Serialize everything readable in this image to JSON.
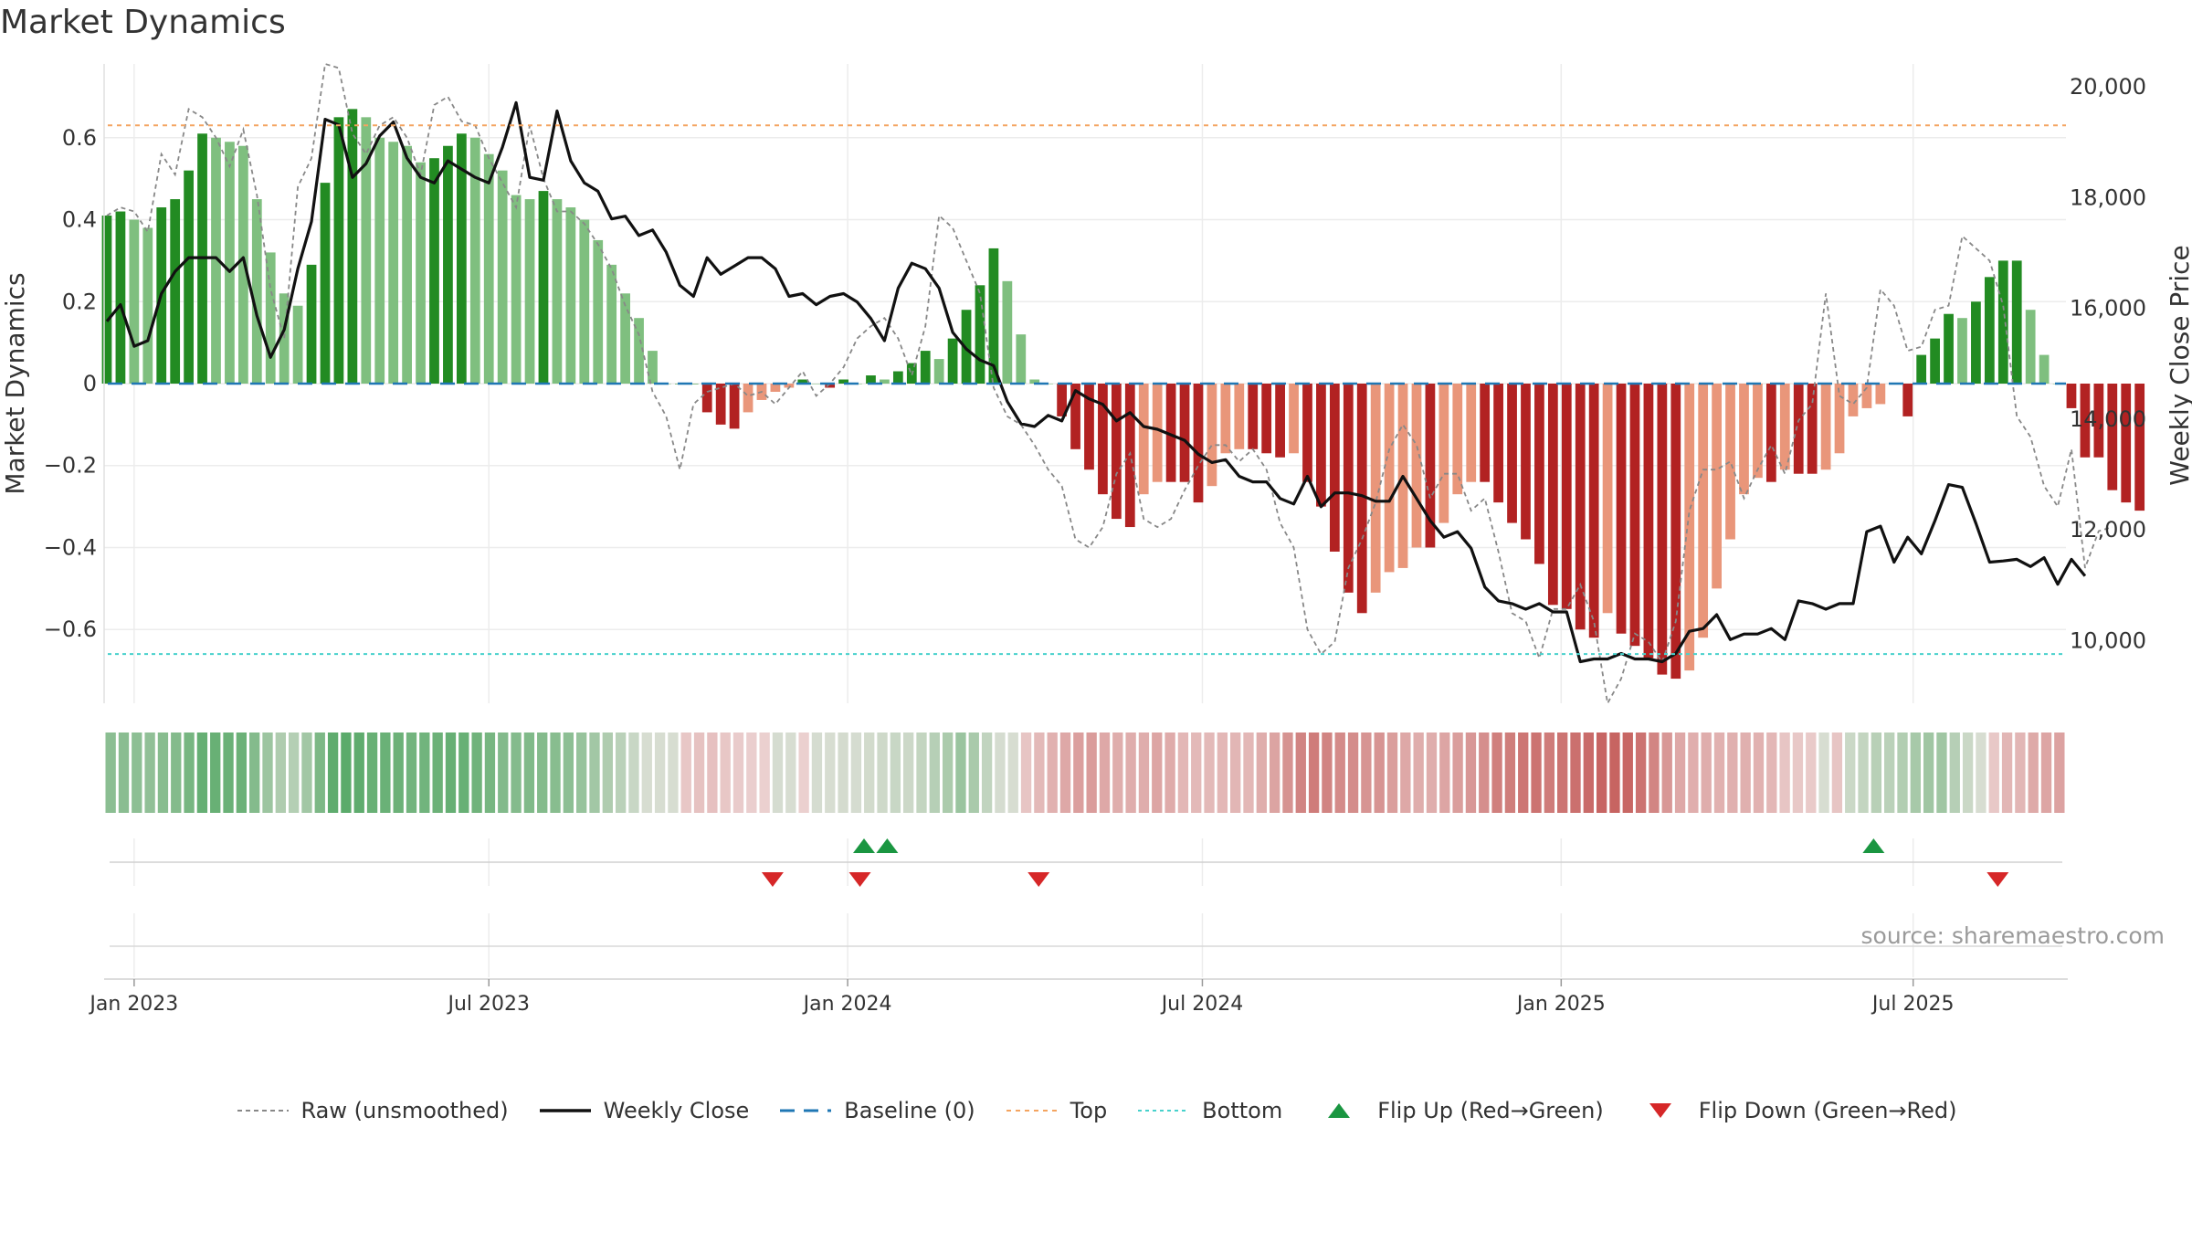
{
  "title": "Market Dynamics",
  "source": "source: sharemaestro.com",
  "colors": {
    "dark_green": "#228b22",
    "light_green": "#7fbf7f",
    "dark_red": "#b22222",
    "light_red": "#e9967a",
    "raw": "#888888",
    "close": "#111111",
    "baseline": "#1f77b4",
    "top": "#f4a460",
    "bottom": "#48d1cc",
    "flip_up": "#1a9641",
    "flip_down": "#d62728"
  },
  "legend": [
    {
      "key": "raw",
      "label": "Raw (unsmoothed)"
    },
    {
      "key": "close",
      "label": "Weekly Close"
    },
    {
      "key": "baseline",
      "label": "Baseline (0)"
    },
    {
      "key": "top",
      "label": "Top"
    },
    {
      "key": "bottom",
      "label": "Bottom"
    },
    {
      "key": "flip_up",
      "label": "Flip Up (Red→Green)"
    },
    {
      "key": "flip_down",
      "label": "Flip Down (Green→Red)"
    }
  ],
  "chart_data": {
    "type": "bar",
    "ylabel": "Market Dynamics",
    "y2label": "Weekly Close Price",
    "ylim": [
      -0.78,
      0.78
    ],
    "y2lim": [
      8850,
      20400
    ],
    "yticks": [
      -0.6,
      -0.4,
      -0.2,
      0,
      0.2,
      0.4,
      0.6
    ],
    "ytick_labels": [
      "−0.6",
      "−0.4",
      "−0.2",
      "0",
      "0.2",
      "0.4",
      "0.6"
    ],
    "y2ticks": [
      10000,
      12000,
      14000,
      16000,
      18000,
      20000
    ],
    "y2tick_labels": [
      "10,000",
      "12,000",
      "14,000",
      "16,000",
      "18,000",
      "20,000"
    ],
    "x_ticks": [
      {
        "week": 0,
        "label": "Jan 2023"
      },
      {
        "week": 26,
        "label": "Jul 2023"
      },
      {
        "week": 52.3,
        "label": "Jan 2024"
      },
      {
        "week": 78.3,
        "label": "Jul 2024"
      },
      {
        "week": 104.6,
        "label": "Jan 2025"
      },
      {
        "week": 130.4,
        "label": "Jul 2025"
      }
    ],
    "top_line": 0.63,
    "bottom_line": -0.66,
    "baseline": 0,
    "week_range": [
      -2.2,
      141.6
    ],
    "first_week": -2,
    "dynamics": [
      0.41,
      0.42,
      0.4,
      0.38,
      0.43,
      0.45,
      0.52,
      0.61,
      0.6,
      0.59,
      0.58,
      0.45,
      0.32,
      0.22,
      0.19,
      0.29,
      0.49,
      0.65,
      0.67,
      0.65,
      0.6,
      0.59,
      0.58,
      0.54,
      0.55,
      0.58,
      0.61,
      0.6,
      0.56,
      0.52,
      0.46,
      0.45,
      0.47,
      0.45,
      0.43,
      0.4,
      0.35,
      0.29,
      0.22,
      0.16,
      0.08,
      0,
      0,
      0,
      -0.07,
      -0.1,
      -0.11,
      -0.07,
      -0.04,
      -0.02,
      -0.01,
      0.01,
      0,
      -0.01,
      0.01,
      0,
      0.02,
      0.01,
      0.03,
      0.05,
      0.08,
      0.06,
      0.11,
      0.18,
      0.24,
      0.33,
      0.25,
      0.12,
      0.01,
      0,
      -0.08,
      -0.16,
      -0.21,
      -0.27,
      -0.33,
      -0.35,
      -0.27,
      -0.24,
      -0.24,
      -0.24,
      -0.29,
      -0.25,
      -0.17,
      -0.16,
      -0.16,
      -0.17,
      -0.18,
      -0.17,
      -0.24,
      -0.3,
      -0.41,
      -0.51,
      -0.56,
      -0.51,
      -0.46,
      -0.45,
      -0.4,
      -0.4,
      -0.34,
      -0.27,
      -0.24,
      -0.24,
      -0.29,
      -0.34,
      -0.38,
      -0.44,
      -0.54,
      -0.55,
      -0.6,
      -0.62,
      -0.56,
      -0.61,
      -0.64,
      -0.67,
      -0.71,
      -0.72,
      -0.7,
      -0.62,
      -0.5,
      -0.38,
      -0.27,
      -0.23,
      -0.24,
      -0.21,
      -0.22,
      -0.22,
      -0.21,
      -0.17,
      -0.08,
      -0.06,
      -0.05,
      0,
      -0.08,
      0.07,
      0.11,
      0.17,
      0.16,
      0.2,
      0.26,
      0.3,
      0.3,
      0.18,
      0.07,
      0,
      -0.06,
      -0.18,
      -0.18,
      -0.26,
      -0.29,
      -0.31
    ],
    "raw": [
      0.41,
      0.43,
      0.42,
      0.37,
      0.56,
      0.51,
      0.67,
      0.65,
      0.6,
      0.53,
      0.62,
      0.46,
      0.23,
      0.11,
      0.48,
      0.55,
      0.78,
      0.77,
      0.61,
      0.56,
      0.63,
      0.65,
      0.6,
      0.51,
      0.68,
      0.7,
      0.64,
      0.63,
      0.55,
      0.49,
      0.43,
      0.63,
      0.5,
      0.42,
      0.42,
      0.39,
      0.34,
      0.28,
      0.19,
      0.12,
      -0.02,
      -0.08,
      -0.21,
      -0.05,
      -0.02,
      -0.01,
      0,
      -0.03,
      -0.02,
      -0.05,
      -0.01,
      0.03,
      -0.03,
      0,
      0.04,
      0.11,
      0.14,
      0.16,
      0.11,
      0.02,
      0.14,
      0.41,
      0.38,
      0.3,
      0.22,
      -0.01,
      -0.08,
      -0.1,
      -0.15,
      -0.21,
      -0.25,
      -0.38,
      -0.4,
      -0.35,
      -0.22,
      -0.17,
      -0.33,
      -0.35,
      -0.33,
      -0.26,
      -0.2,
      -0.15,
      -0.15,
      -0.19,
      -0.16,
      -0.21,
      -0.34,
      -0.4,
      -0.6,
      -0.66,
      -0.63,
      -0.45,
      -0.38,
      -0.29,
      -0.16,
      -0.1,
      -0.15,
      -0.28,
      -0.22,
      -0.22,
      -0.31,
      -0.28,
      -0.41,
      -0.56,
      -0.58,
      -0.67,
      -0.55,
      -0.55,
      -0.49,
      -0.58,
      -0.78,
      -0.72,
      -0.61,
      -0.63,
      -0.68,
      -0.58,
      -0.31,
      -0.21,
      -0.21,
      -0.19,
      -0.28,
      -0.21,
      -0.15,
      -0.22,
      -0.09,
      -0.05,
      0.22,
      -0.03,
      -0.05,
      -0.01,
      0.23,
      0.19,
      0.08,
      0.09,
      0.18,
      0.19,
      0.36,
      0.33,
      0.3,
      0.19,
      -0.08,
      -0.13,
      -0.25,
      -0.3,
      -0.16,
      -0.45,
      -0.36,
      -0.35
    ],
    "close": [
      15750,
      16050,
      15300,
      15400,
      16250,
      16650,
      16900,
      16900,
      16900,
      16650,
      16900,
      15850,
      15100,
      15600,
      16700,
      17550,
      19400,
      19300,
      18350,
      18600,
      19100,
      19350,
      18700,
      18350,
      18250,
      18650,
      18500,
      18350,
      18250,
      18900,
      19700,
      18350,
      18300,
      19550,
      18650,
      18250,
      18100,
      17600,
      17650,
      17300,
      17400,
      17000,
      16400,
      16200,
      16900,
      16600,
      16750,
      16900,
      16900,
      16700,
      16200,
      16250,
      16050,
      16200,
      16250,
      16100,
      15800,
      15400,
      16350,
      16800,
      16700,
      16350,
      15550,
      15250,
      15050,
      14950,
      14300,
      13900,
      13850,
      14050,
      13950,
      14500,
      14350,
      14250,
      13950,
      14100,
      13850,
      13800,
      13700,
      13600,
      13350,
      13200,
      13250,
      12950,
      12850,
      12850,
      12550,
      12450,
      12950,
      12400,
      12650,
      12650,
      12600,
      12500,
      12500,
      12950,
      12550,
      12150,
      11850,
      11950,
      11650,
      10950,
      10700,
      10650,
      10550,
      10650,
      10500,
      10500,
      9600,
      9650,
      9650,
      9750,
      9650,
      9650,
      9600,
      9750,
      10150,
      10200,
      10450,
      10000,
      10100,
      10100,
      10200,
      10000,
      10700,
      10650,
      10550,
      10650,
      10650,
      11950,
      12050,
      11400,
      11850,
      11550,
      12150,
      12800,
      12750,
      12100,
      11400,
      11420,
      11450,
      11320,
      11480,
      11000,
      11450,
      11150
    ],
    "flips_up": [
      53.5,
      55.2,
      127.5
    ],
    "flips_down": [
      46.8,
      53.2,
      66.3,
      136.6
    ]
  }
}
